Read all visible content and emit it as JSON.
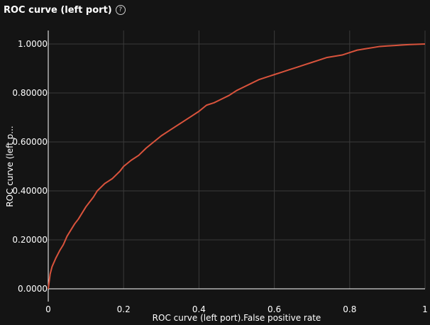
{
  "panel": {
    "title": "ROC curve (left port)",
    "help_icon": "question-circle-icon"
  },
  "chart_data": {
    "type": "line",
    "xlabel": "ROC curve (left port).False positive rate",
    "ylabel": "ROC curve (left p...",
    "xlim": [
      0,
      1
    ],
    "ylim": [
      0,
      1
    ],
    "grid": true,
    "x_ticks": [
      "0",
      "0.2",
      "0.4",
      "0.6",
      "0.8",
      "1"
    ],
    "y_ticks": [
      "0.0000",
      "0.20000",
      "0.40000",
      "0.60000",
      "0.80000",
      "1.0000"
    ],
    "colors": {
      "line": "#d9533c",
      "grid": "#3a3a3a",
      "axis": "#ffffff",
      "background": "#141414"
    },
    "series": [
      {
        "x": [
          0,
          0.005,
          0.01,
          0.02,
          0.03,
          0.04,
          0.05,
          0.06,
          0.07,
          0.08,
          0.09,
          0.1,
          0.11,
          0.12,
          0.13,
          0.14,
          0.15,
          0.16,
          0.17,
          0.18,
          0.19,
          0.2,
          0.22,
          0.24,
          0.26,
          0.28,
          0.3,
          0.32,
          0.34,
          0.36,
          0.38,
          0.4,
          0.42,
          0.44,
          0.46,
          0.48,
          0.5,
          0.52,
          0.54,
          0.56,
          0.58,
          0.6,
          0.62,
          0.64,
          0.66,
          0.68,
          0.7,
          0.72,
          0.74,
          0.76,
          0.78,
          0.8,
          0.82,
          0.84,
          0.86,
          0.88,
          0.9,
          0.92,
          0.94,
          0.96,
          0.98,
          1.0
        ],
        "y": [
          0.0,
          0.06,
          0.09,
          0.125,
          0.155,
          0.18,
          0.215,
          0.24,
          0.265,
          0.285,
          0.31,
          0.335,
          0.355,
          0.375,
          0.4,
          0.415,
          0.43,
          0.44,
          0.45,
          0.465,
          0.48,
          0.5,
          0.525,
          0.545,
          0.575,
          0.6,
          0.625,
          0.645,
          0.665,
          0.685,
          0.705,
          0.725,
          0.75,
          0.76,
          0.775,
          0.79,
          0.81,
          0.825,
          0.84,
          0.855,
          0.865,
          0.875,
          0.885,
          0.895,
          0.905,
          0.915,
          0.925,
          0.935,
          0.945,
          0.95,
          0.955,
          0.965,
          0.975,
          0.98,
          0.985,
          0.99,
          0.992,
          0.994,
          0.996,
          0.998,
          0.999,
          1.0
        ]
      }
    ]
  }
}
